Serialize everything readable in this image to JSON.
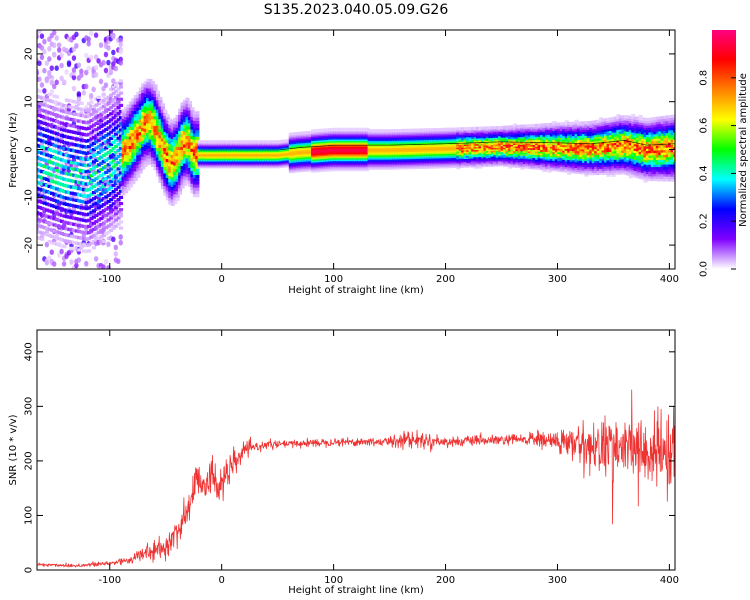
{
  "title": "S135.2023.040.05.09.G26",
  "chart_data": [
    {
      "type": "heatmap",
      "name": "spectrogram",
      "xlabel": "Height of straight line (km)",
      "ylabel": "Frequency (Hz)",
      "xlim": [
        -165,
        405
      ],
      "ylim": [
        -25,
        25
      ],
      "xticks": [
        -100,
        0,
        100,
        200,
        300,
        400
      ],
      "yticks": [
        -20,
        -10,
        0,
        10,
        20
      ],
      "colorbar": {
        "label": "Normalized spectral amplitude",
        "range": [
          0,
          1
        ],
        "ticks": [
          "0.0",
          "0.2",
          "0.4",
          "0.6",
          "0.8"
        ],
        "tick_values": [
          0,
          0.2,
          0.4,
          0.6,
          0.8
        ],
        "colors": [
          "#ffffff",
          "#7f00ff",
          "#0000ff",
          "#00ffff",
          "#00ff00",
          "#ffff00",
          "#ff8000",
          "#ff0000",
          "#ff0080"
        ]
      },
      "ridge": {
        "x": [
          -165,
          -140,
          -120,
          -100,
          -85,
          -75,
          -70,
          -65,
          -60,
          -55,
          -50,
          -45,
          -40,
          -35,
          -30,
          -25,
          -20,
          0,
          50,
          70,
          100,
          150,
          200,
          250,
          300,
          330,
          360,
          380,
          405
        ],
        "freq": [
          -3,
          -5,
          -6,
          -3,
          0,
          3,
          5,
          6,
          5,
          2,
          -1,
          -3,
          -2,
          1,
          2,
          -1,
          -1,
          -1,
          -1,
          -0.5,
          0,
          0,
          0.3,
          0.7,
          0.5,
          0.3,
          1,
          0,
          0.3
        ]
      }
    },
    {
      "type": "line",
      "name": "snr",
      "xlabel": "Height of straight line (km)",
      "ylabel": "SNR (10 * v/v)",
      "xlim": [
        -165,
        405
      ],
      "ylim": [
        0,
        440
      ],
      "xticks": [
        -100,
        0,
        100,
        200,
        300,
        400
      ],
      "yticks": [
        0,
        100,
        200,
        300,
        400
      ],
      "color": "#ee3333",
      "envelope": {
        "x": [
          -165,
          -130,
          -100,
          -80,
          -70,
          -50,
          -40,
          -30,
          -25,
          -20,
          -15,
          -10,
          -5,
          0,
          10,
          20,
          30,
          40,
          50,
          100,
          150,
          160,
          200,
          250,
          280,
          300,
          320,
          340,
          360,
          380,
          400,
          405
        ],
        "mean": [
          10,
          8,
          12,
          20,
          30,
          40,
          70,
          110,
          150,
          170,
          160,
          170,
          160,
          160,
          190,
          220,
          225,
          230,
          230,
          235,
          235,
          240,
          235,
          238,
          240,
          235,
          230,
          225,
          225,
          215,
          210,
          210
        ],
        "spread": [
          4,
          4,
          6,
          10,
          15,
          20,
          30,
          40,
          50,
          40,
          40,
          40,
          40,
          40,
          30,
          15,
          10,
          8,
          8,
          8,
          10,
          20,
          10,
          10,
          15,
          25,
          40,
          60,
          60,
          70,
          80,
          80
        ]
      }
    }
  ]
}
